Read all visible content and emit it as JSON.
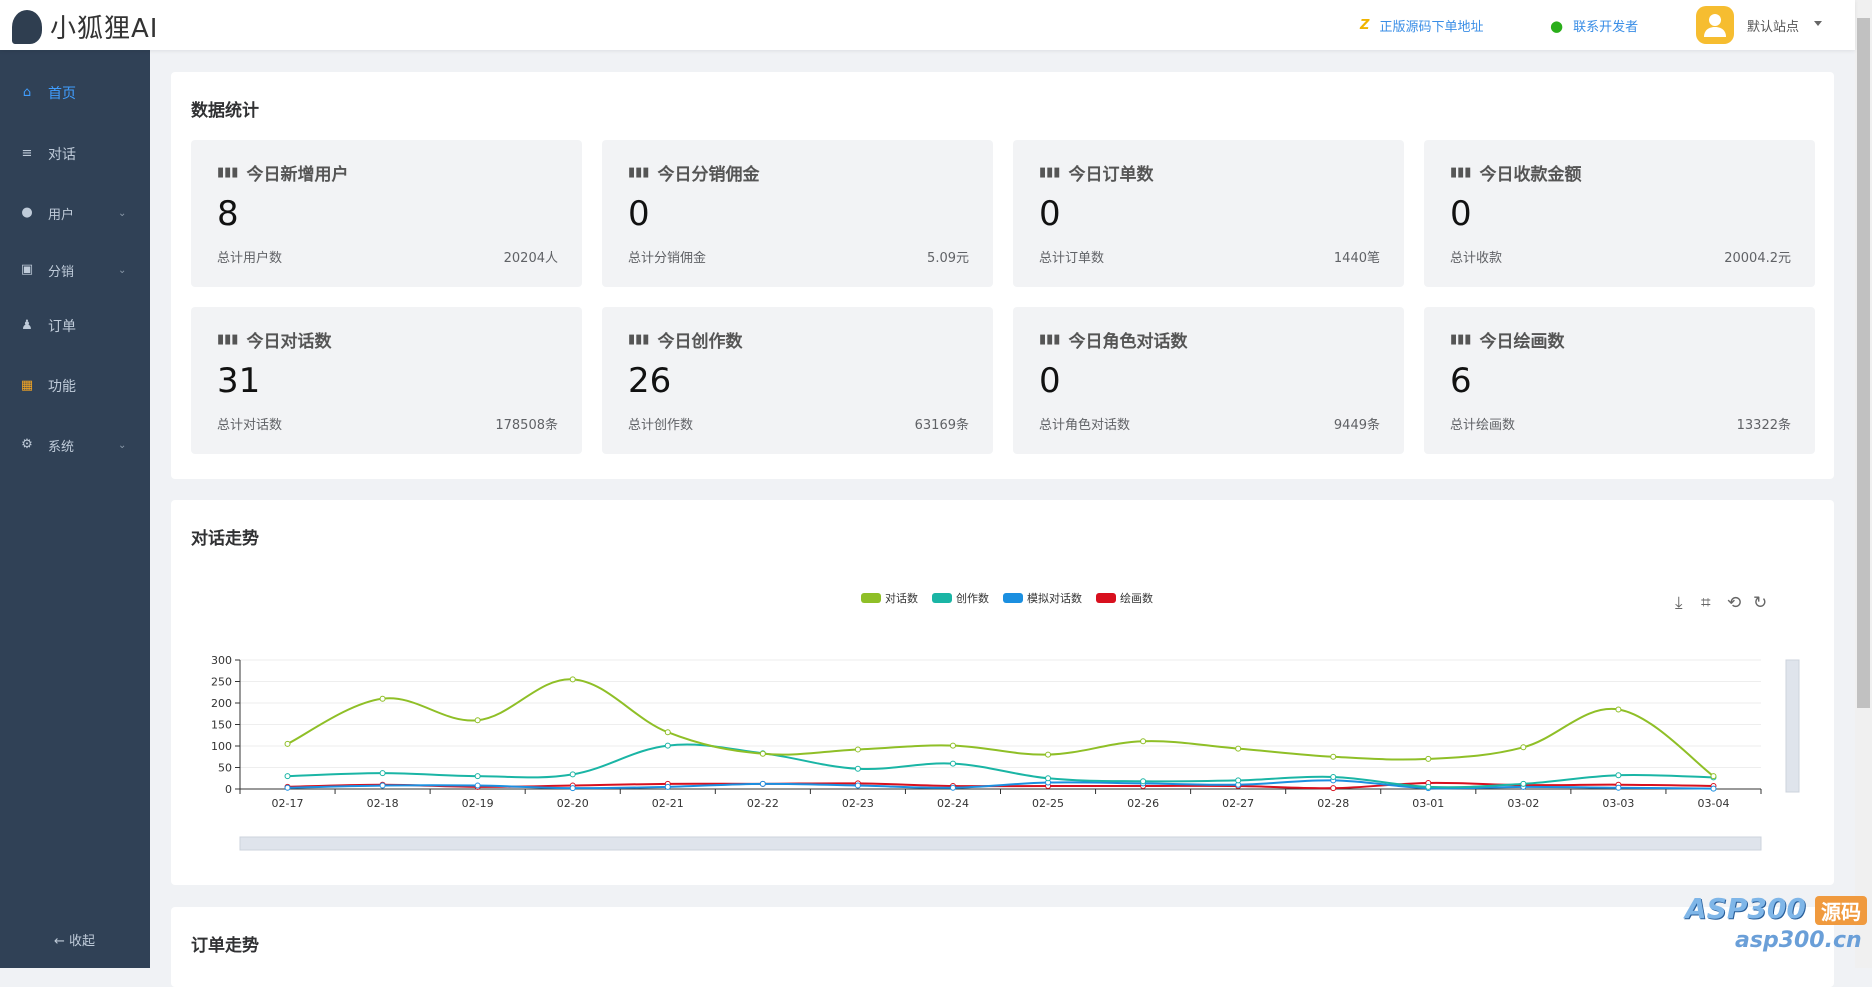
{
  "header": {
    "logo_text": "小狐狸AI",
    "link_source": "正版源码下单地址",
    "link_contact": "联系开发者",
    "site": "默认站点"
  },
  "sidebar": {
    "items": [
      {
        "label": "首页",
        "icon": "home-icon"
      },
      {
        "label": "对话",
        "icon": "menu-icon"
      },
      {
        "label": "用户",
        "icon": "user-icon",
        "expandable": true
      },
      {
        "label": "分销",
        "icon": "distribution-icon",
        "expandable": true
      },
      {
        "label": "订单",
        "icon": "money-bag-icon"
      },
      {
        "label": "功能",
        "icon": "grid-icon"
      },
      {
        "label": "系统",
        "icon": "gear-icon",
        "expandable": true
      }
    ],
    "collapse": "← 收起"
  },
  "stats": {
    "title": "数据统计",
    "items": [
      {
        "title": "今日新增用户",
        "value": "8",
        "label": "总计用户数",
        "total": "20204人"
      },
      {
        "title": "今日分销佣金",
        "value": "0",
        "label": "总计分销佣金",
        "total": "5.09元"
      },
      {
        "title": "今日订单数",
        "value": "0",
        "label": "总计订单数",
        "total": "1440笔"
      },
      {
        "title": "今日收款金额",
        "value": "0",
        "label": "总计收款",
        "total": "20004.2元"
      },
      {
        "title": "今日对话数",
        "value": "31",
        "label": "总计对话数",
        "total": "178508条"
      },
      {
        "title": "今日创作数",
        "value": "26",
        "label": "总计创作数",
        "total": "63169条"
      },
      {
        "title": "今日角色对话数",
        "value": "0",
        "label": "总计角色对话数",
        "total": "9449条"
      },
      {
        "title": "今日绘画数",
        "value": "6",
        "label": "总计绘画数",
        "total": "13322条"
      }
    ]
  },
  "trend": {
    "title": "对话走势"
  },
  "orders": {
    "title": "订单走势"
  },
  "watermark": {
    "text": "ASP300",
    "badge": "源码",
    "url": "asp300.cn"
  },
  "chart_data": {
    "type": "line",
    "title": "对话走势",
    "ylim": [
      0,
      300
    ],
    "yticks": [
      0,
      50,
      100,
      150,
      200,
      250,
      300
    ],
    "grid": true,
    "legend": "top-center",
    "categories": [
      "02-17",
      "02-18",
      "02-19",
      "02-20",
      "02-21",
      "02-22",
      "02-23",
      "02-24",
      "02-25",
      "02-26",
      "02-27",
      "02-28",
      "03-01",
      "03-02",
      "03-03",
      "03-04"
    ],
    "series": [
      {
        "name": "对话数",
        "color": "#8fbf27",
        "values": [
          105,
          210,
          160,
          255,
          132,
          82,
          92,
          101,
          80,
          111,
          94,
          75,
          70,
          97,
          185,
          30
        ]
      },
      {
        "name": "创作数",
        "color": "#1ab5a5",
        "values": [
          30,
          37,
          30,
          34,
          101,
          83,
          47,
          59,
          25,
          18,
          20,
          28,
          5,
          12,
          32,
          27
        ]
      },
      {
        "name": "模拟对话数",
        "color": "#1b8fe0",
        "values": [
          3,
          8,
          8,
          2,
          5,
          12,
          8,
          3,
          15,
          13,
          10,
          20,
          2,
          5,
          3,
          1
        ]
      },
      {
        "name": "绘画数",
        "color": "#d8101e",
        "values": [
          5,
          10,
          5,
          8,
          12,
          12,
          13,
          7,
          7,
          7,
          7,
          2,
          14,
          9,
          10,
          7
        ]
      }
    ]
  }
}
